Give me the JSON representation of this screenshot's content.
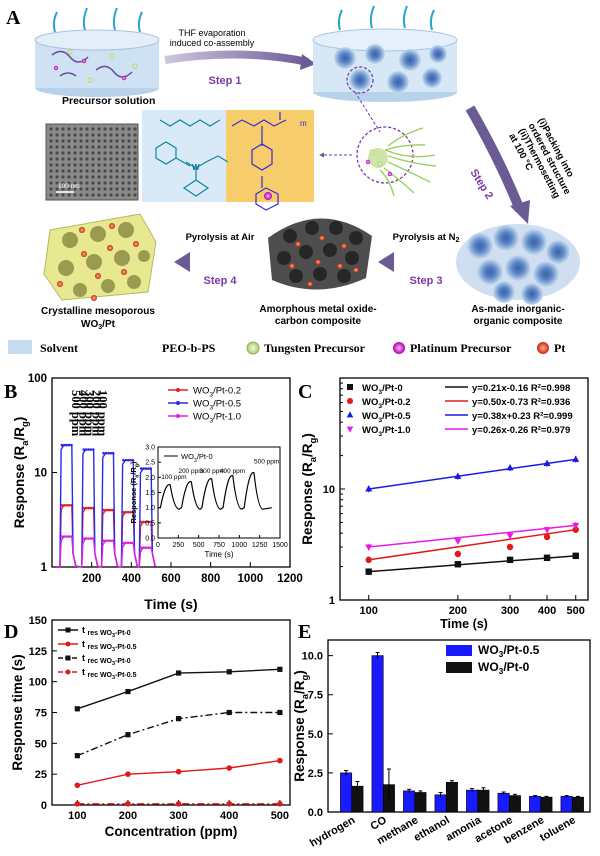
{
  "panel_letters": {
    "a": "A",
    "b": "B",
    "c": "C",
    "d": "D",
    "e": "E"
  },
  "schematic": {
    "step1": "Step 1",
    "step1_caption_1": "THF evaporation",
    "step1_caption_2": "induced co-assembly",
    "step2": "Step 2",
    "step2_caption_1": "(i)Packing into",
    "step2_caption_2": "ordered structure",
    "step2_caption_3": "(ii)Thermosetting",
    "step2_caption_4": "at 100 °C",
    "step3": "Step 3",
    "step3_caption": "Pyrolysis at N",
    "step3_caption_sub": "2",
    "step4": "Step 4",
    "step4_caption": "Pyrolysis at Air",
    "precursor_solution": "Precursor solution",
    "tem_scale": "100 nm",
    "crystalline_1": "Crystalline mesoporous",
    "crystalline_2": "WO",
    "crystalline_2_sub": "3",
    "crystalline_2_tail": "/Pt",
    "amorphous_1": "Amorphous metal oxide-",
    "amorphous_2": "carbon composite",
    "asmade_1": "As-made inorganic-",
    "asmade_2": "organic composite",
    "legend": {
      "solvent": "Solvent",
      "peo": "PEO-b-PS",
      "tungsten": "Tungsten Precursor",
      "platinum": "Platinum Precursor",
      "pt": "Pt"
    },
    "colors": {
      "solvent": "#c6dcf0",
      "peo_chain": "#8fd14f",
      "tungsten": "#cfe8a8",
      "platinum": "#d61ed6",
      "pt": "#e8401c",
      "arrow": "#6b5b95",
      "struct_blue": "#d9e9f7",
      "struct_yellow": "#f6cd6a",
      "monolith": "#e8e890"
    }
  },
  "chart_data": [
    {
      "panel": "B",
      "type": "line",
      "xlabel": "Time (s)",
      "ylabel": "Response (R_a/R_g)",
      "xlim": [
        0,
        1200
      ],
      "xticks": [
        "200",
        "400",
        "600",
        "800",
        "1000",
        "1200"
      ],
      "ylim": [
        1,
        100
      ],
      "yscale": "log",
      "yticks": [
        "1",
        "10",
        "100"
      ],
      "legend_position": "top-right",
      "concentration_labels": [
        "500 ppm",
        "400 ppm",
        "300 ppm",
        "200 ppm",
        "100 ppm"
      ],
      "series": [
        {
          "name": "WO3/Pt-0.2",
          "color": "#e0202a",
          "pulse_levels": [
            4.5,
            4.2,
            4.0,
            3.8,
            3.0
          ]
        },
        {
          "name": "WO3/Pt-0.5",
          "color": "#2a2ae8",
          "pulse_levels": [
            19.5,
            17.5,
            16.0,
            13.5,
            11.0
          ]
        },
        {
          "name": "WO3/Pt-1.0",
          "color": "#e020e0",
          "pulse_levels": [
            2.1,
            2.0,
            1.9,
            1.8,
            1.6
          ]
        }
      ],
      "inset": {
        "series_name": "WO3/Pt-0",
        "xlabel": "Time (s)",
        "ylabel": "Response (R_a/R_g)",
        "xlim": [
          0,
          1500
        ],
        "xticks": [
          "0",
          "250",
          "500",
          "750",
          "1000",
          "1250",
          "1500"
        ],
        "ylim": [
          0,
          3.0
        ],
        "yticks": [
          "0.0",
          "0.5",
          "1.0",
          "1.5",
          "2.0",
          "2.5",
          "3.0"
        ],
        "labels": [
          "100 ppm",
          "200 ppm",
          "300 ppm",
          "400 ppm",
          "500 ppm"
        ],
        "peaks": [
          1.75,
          1.85,
          1.95,
          2.05,
          2.15
        ]
      }
    },
    {
      "panel": "C",
      "type": "scatter",
      "xlabel": "Time (s)",
      "ylabel": "Response (R_a/R_g)",
      "xscale": "log",
      "yscale": "log",
      "xlim": [
        80,
        550
      ],
      "ylim": [
        1,
        100
      ],
      "x": [
        100,
        200,
        300,
        400,
        500
      ],
      "xticks": [
        "100",
        "200",
        "300",
        "400",
        "500"
      ],
      "yticks": [
        "1",
        "10"
      ],
      "legend_position": "top",
      "series": [
        {
          "name": "WO3/Pt-0",
          "color": "#111111",
          "marker": "square",
          "values": [
            1.8,
            2.1,
            2.3,
            2.4,
            2.5
          ],
          "fit": "y=0.21x-0.16 R²=0.998"
        },
        {
          "name": "WO3/Pt-0.2",
          "color": "#e01a1a",
          "marker": "circle",
          "values": [
            2.3,
            2.6,
            3.0,
            3.7,
            4.3
          ],
          "fit": "y=0.50x-0.73 R²=0.936"
        },
        {
          "name": "WO3/Pt-0.5",
          "color": "#1a1ae8",
          "marker": "triangle",
          "values": [
            10.0,
            13.0,
            15.5,
            17.0,
            18.5
          ],
          "fit": "y=0.38x+0.23 R²=0.999"
        },
        {
          "name": "WO3/Pt-1.0",
          "color": "#e81ae8",
          "marker": "triangle-down",
          "values": [
            3.0,
            3.4,
            3.8,
            4.3,
            4.7
          ],
          "fit": "y=0.26x-0.26 R²=0.979"
        }
      ]
    },
    {
      "panel": "D",
      "type": "line",
      "xlabel": "Concentration (ppm)",
      "ylabel": "Response time (s)",
      "xlim": [
        50,
        520
      ],
      "ylim": [
        0,
        150
      ],
      "x": [
        100,
        200,
        300,
        400,
        500
      ],
      "xticks": [
        "100",
        "200",
        "300",
        "400",
        "500"
      ],
      "yticks": [
        "0",
        "25",
        "50",
        "75",
        "100",
        "125",
        "150"
      ],
      "legend_position": "top-left",
      "series": [
        {
          "name": "t res WO3-Pt-0",
          "color": "#111111",
          "dash": false,
          "values": [
            78,
            92,
            107,
            108,
            110
          ]
        },
        {
          "name": "t res WO3-Pt-0.5",
          "color": "#e01a1a",
          "dash": false,
          "values": [
            16,
            25,
            27,
            30,
            36
          ]
        },
        {
          "name": "t rec WO3-Pt-0",
          "color": "#111111",
          "dash": true,
          "values": [
            40,
            57,
            70,
            75,
            75
          ]
        },
        {
          "name": "t rec WO3-Pt-0.5",
          "color": "#e01a1a",
          "dash": true,
          "values": [
            1,
            1,
            1,
            1,
            1
          ]
        }
      ]
    },
    {
      "panel": "E",
      "type": "bar",
      "ylabel": "Response (R_a/R_g)",
      "ylim": [
        0,
        11
      ],
      "yticks": [
        "0.0",
        "2.5",
        "5.0",
        "7.5",
        "10.0"
      ],
      "legend_position": "top-right",
      "categories": [
        "hydrogen",
        "CO",
        "methane",
        "ethanol",
        "amonia",
        "acetone",
        "benzene",
        "toluene"
      ],
      "series": [
        {
          "name": "WO3/Pt-0.5",
          "color": "#1a1aff",
          "values": [
            2.5,
            10.0,
            1.35,
            1.1,
            1.4,
            1.2,
            1.0,
            1.0
          ],
          "errors": [
            0.15,
            0.2,
            0.1,
            0.15,
            0.1,
            0.08,
            0.05,
            0.05
          ]
        },
        {
          "name": "WO3/Pt-0",
          "color": "#111111",
          "values": [
            1.65,
            1.75,
            1.25,
            1.9,
            1.4,
            1.05,
            0.95,
            0.95
          ],
          "errors": [
            0.3,
            1.0,
            0.1,
            0.1,
            0.15,
            0.08,
            0.05,
            0.05
          ]
        }
      ]
    }
  ]
}
